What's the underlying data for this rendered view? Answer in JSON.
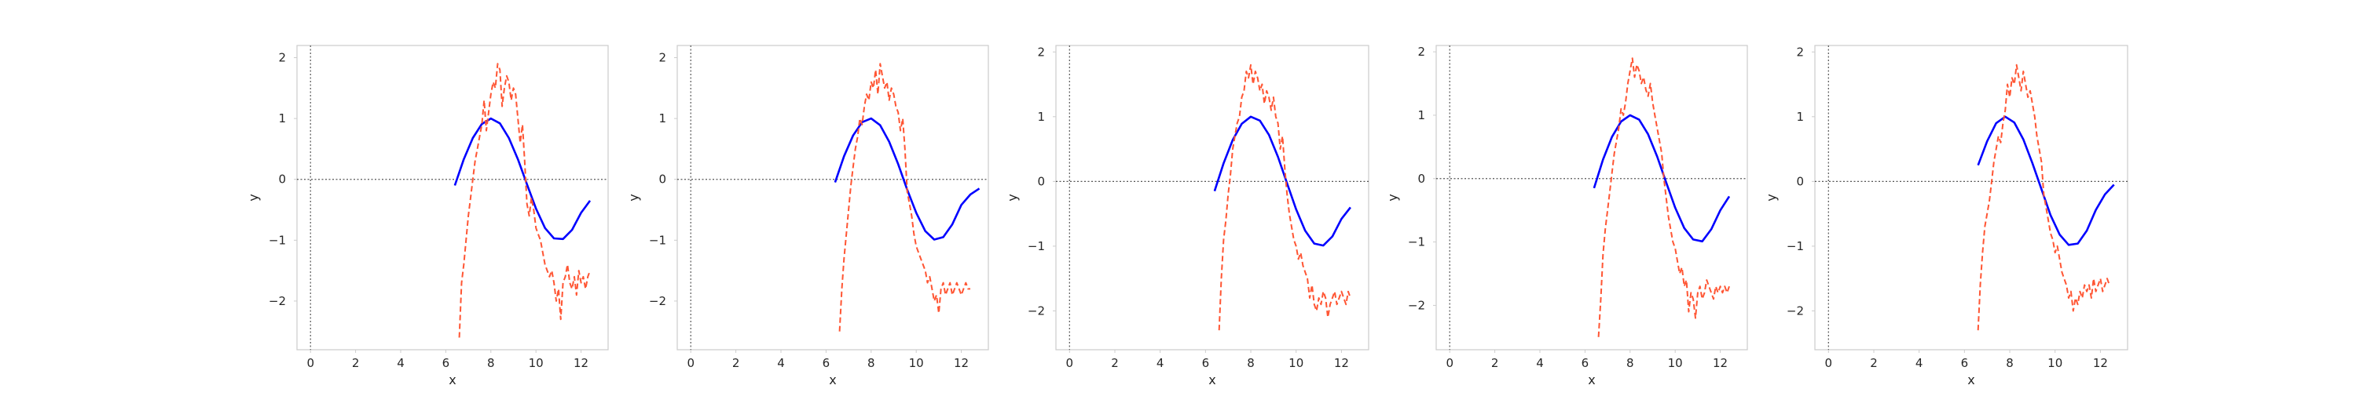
{
  "figure": {
    "panel_count": 5
  },
  "colors": {
    "sine": "#0000ff",
    "noisy": "#ff5533",
    "zero_lines": "#555555",
    "frame": "#cccccc"
  },
  "chart_data": [
    {
      "type": "line",
      "xlabel": "x",
      "ylabel": "y",
      "xlim": [
        -0.6,
        13.2
      ],
      "ylim": [
        -2.8,
        2.2
      ],
      "xticks": [
        0,
        2,
        4,
        6,
        8,
        10,
        12
      ],
      "yticks": [
        -2,
        -1,
        0,
        1,
        2
      ],
      "grid": false,
      "reference_lines": {
        "horizontal_y": 0,
        "vertical_x": 0
      },
      "series": [
        {
          "style": "solid",
          "color": "#0000ff",
          "x": [
            6.4,
            6.8,
            7.2,
            7.6,
            8.0,
            8.4,
            8.8,
            9.2,
            9.6,
            10.0,
            10.4,
            10.8,
            11.2,
            11.6,
            12.0,
            12.4
          ],
          "y": [
            -0.1,
            0.33,
            0.68,
            0.91,
            1.0,
            0.92,
            0.68,
            0.33,
            -0.08,
            -0.48,
            -0.8,
            -0.97,
            -0.98,
            -0.83,
            -0.55,
            -0.35
          ]
        },
        {
          "style": "dashed",
          "color": "#ff5533",
          "x": [
            6.6,
            6.7,
            6.8,
            6.9,
            7.0,
            7.1,
            7.2,
            7.3,
            7.4,
            7.5,
            7.6,
            7.7,
            7.8,
            7.9,
            8.0,
            8.1,
            8.2,
            8.3,
            8.4,
            8.5,
            8.6,
            8.7,
            8.8,
            8.9,
            9.0,
            9.1,
            9.2,
            9.3,
            9.4,
            9.5,
            9.6,
            9.7,
            9.8,
            9.9,
            10.0,
            10.1,
            10.2,
            10.3,
            10.4,
            10.5,
            10.6,
            10.7,
            10.8,
            10.9,
            11.0,
            11.1,
            11.2,
            11.3,
            11.4,
            11.5,
            11.6,
            11.7,
            11.8,
            11.9,
            12.0,
            12.1,
            12.2,
            12.3,
            12.4
          ],
          "y": [
            -2.6,
            -1.7,
            -1.4,
            -1.0,
            -0.6,
            -0.3,
            0.0,
            0.3,
            0.5,
            0.7,
            0.9,
            1.3,
            0.8,
            1.1,
            1.4,
            1.6,
            1.5,
            1.9,
            1.8,
            1.2,
            1.5,
            1.7,
            1.6,
            1.3,
            1.5,
            1.4,
            1.0,
            0.6,
            0.9,
            0.3,
            -0.4,
            -0.6,
            -0.3,
            -0.5,
            -0.8,
            -0.9,
            -1.0,
            -1.2,
            -1.4,
            -1.5,
            -1.6,
            -1.5,
            -1.7,
            -2.0,
            -1.8,
            -2.3,
            -1.7,
            -1.6,
            -1.4,
            -1.7,
            -1.8,
            -1.6,
            -1.9,
            -1.5,
            -1.7,
            -1.6,
            -1.8,
            -1.6,
            -1.5
          ]
        }
      ]
    },
    {
      "type": "line",
      "xlabel": "x",
      "ylabel": "y",
      "xlim": [
        -0.6,
        13.2
      ],
      "ylim": [
        -2.8,
        2.2
      ],
      "xticks": [
        0,
        2,
        4,
        6,
        8,
        10,
        12
      ],
      "yticks": [
        -2,
        -1,
        0,
        1,
        2
      ],
      "grid": false,
      "reference_lines": {
        "horizontal_y": 0,
        "vertical_x": 0
      },
      "series": [
        {
          "style": "solid",
          "color": "#0000ff",
          "x": [
            6.4,
            6.8,
            7.2,
            7.6,
            8.0,
            8.4,
            8.8,
            9.2,
            9.6,
            10.0,
            10.4,
            10.8,
            11.2,
            11.6,
            12.0,
            12.4,
            12.8
          ],
          "y": [
            -0.05,
            0.38,
            0.72,
            0.94,
            1.0,
            0.89,
            0.62,
            0.25,
            -0.17,
            -0.55,
            -0.85,
            -0.99,
            -0.95,
            -0.74,
            -0.42,
            -0.25,
            -0.15
          ]
        },
        {
          "style": "dashed",
          "color": "#ff5533",
          "x": [
            6.6,
            6.7,
            6.8,
            6.9,
            7.0,
            7.1,
            7.2,
            7.3,
            7.4,
            7.5,
            7.6,
            7.7,
            7.8,
            7.9,
            8.0,
            8.1,
            8.2,
            8.3,
            8.4,
            8.5,
            8.6,
            8.7,
            8.8,
            8.9,
            9.0,
            9.1,
            9.2,
            9.3,
            9.4,
            9.5,
            9.6,
            9.7,
            9.8,
            9.9,
            10.0,
            10.1,
            10.2,
            10.3,
            10.4,
            10.5,
            10.6,
            10.7,
            10.8,
            10.9,
            11.0,
            11.1,
            11.2,
            11.3,
            11.4,
            11.5,
            11.6,
            11.7,
            11.8,
            11.9,
            12.0,
            12.1,
            12.2,
            12.3,
            12.4
          ],
          "y": [
            -2.5,
            -1.8,
            -1.3,
            -0.9,
            -0.5,
            -0.1,
            0.2,
            0.5,
            0.7,
            1.0,
            0.9,
            1.2,
            1.4,
            1.3,
            1.6,
            1.5,
            1.8,
            1.4,
            1.9,
            1.7,
            1.5,
            1.6,
            1.3,
            1.5,
            1.4,
            1.2,
            1.1,
            0.8,
            1.0,
            0.5,
            -0.2,
            -0.4,
            -0.6,
            -0.9,
            -1.1,
            -1.2,
            -1.3,
            -1.4,
            -1.5,
            -1.7,
            -1.6,
            -1.8,
            -2.0,
            -1.9,
            -2.2,
            -1.8,
            -1.7,
            -1.9,
            -1.8,
            -1.7,
            -1.9,
            -1.8,
            -1.7,
            -1.8,
            -1.9,
            -1.8,
            -1.7,
            -1.8,
            -1.8
          ]
        }
      ]
    },
    {
      "type": "line",
      "xlabel": "x",
      "ylabel": "y",
      "xlim": [
        -0.6,
        13.2
      ],
      "ylim": [
        -2.6,
        2.1
      ],
      "xticks": [
        0,
        2,
        4,
        6,
        8,
        10,
        12
      ],
      "yticks": [
        -2,
        -1,
        0,
        1,
        2
      ],
      "grid": false,
      "reference_lines": {
        "horizontal_y": 0,
        "vertical_x": 0
      },
      "series": [
        {
          "style": "solid",
          "color": "#0000ff",
          "x": [
            6.4,
            6.8,
            7.2,
            7.6,
            8.0,
            8.4,
            8.8,
            9.2,
            9.6,
            10.0,
            10.4,
            10.8,
            11.2,
            11.6,
            12.0,
            12.4
          ],
          "y": [
            -0.15,
            0.28,
            0.64,
            0.89,
            1.0,
            0.94,
            0.72,
            0.38,
            -0.03,
            -0.43,
            -0.76,
            -0.96,
            -0.99,
            -0.85,
            -0.58,
            -0.4
          ]
        },
        {
          "style": "dashed",
          "color": "#ff5533",
          "x": [
            6.6,
            6.7,
            6.8,
            6.9,
            7.0,
            7.1,
            7.2,
            7.3,
            7.4,
            7.5,
            7.6,
            7.7,
            7.8,
            7.9,
            8.0,
            8.1,
            8.2,
            8.3,
            8.4,
            8.5,
            8.6,
            8.7,
            8.8,
            8.9,
            9.0,
            9.1,
            9.2,
            9.3,
            9.4,
            9.5,
            9.6,
            9.7,
            9.8,
            9.9,
            10.0,
            10.1,
            10.2,
            10.3,
            10.4,
            10.5,
            10.6,
            10.7,
            10.8,
            10.9,
            11.0,
            11.1,
            11.2,
            11.3,
            11.4,
            11.5,
            11.6,
            11.7,
            11.8,
            11.9,
            12.0,
            12.1,
            12.2,
            12.3,
            12.4
          ],
          "y": [
            -2.3,
            -1.5,
            -0.9,
            -0.6,
            -0.2,
            0.1,
            0.5,
            0.7,
            0.9,
            1.0,
            1.3,
            1.4,
            1.7,
            1.6,
            1.8,
            1.5,
            1.7,
            1.6,
            1.4,
            1.5,
            1.2,
            1.4,
            1.3,
            1.1,
            1.3,
            1.0,
            0.9,
            0.5,
            0.7,
            0.2,
            -0.2,
            -0.5,
            -0.7,
            -0.9,
            -1.0,
            -1.2,
            -1.1,
            -1.3,
            -1.4,
            -1.5,
            -1.8,
            -1.6,
            -1.9,
            -2.0,
            -1.8,
            -1.9,
            -1.7,
            -1.8,
            -2.1,
            -1.9,
            -1.8,
            -1.7,
            -1.9,
            -1.8,
            -1.7,
            -1.8,
            -1.9,
            -1.7,
            -1.8
          ]
        }
      ]
    },
    {
      "type": "line",
      "xlabel": "x",
      "ylabel": "y",
      "xlim": [
        -0.6,
        13.2
      ],
      "ylim": [
        -2.7,
        2.1
      ],
      "xticks": [
        0,
        2,
        4,
        6,
        8,
        10,
        12
      ],
      "yticks": [
        -2,
        -1,
        0,
        1,
        2
      ],
      "grid": false,
      "reference_lines": {
        "horizontal_y": 0,
        "vertical_x": 0
      },
      "series": [
        {
          "style": "solid",
          "color": "#0000ff",
          "x": [
            6.4,
            6.8,
            7.2,
            7.6,
            8.0,
            8.4,
            8.8,
            9.2,
            9.6,
            10.0,
            10.4,
            10.8,
            11.2,
            11.6,
            12.0,
            12.4
          ],
          "y": [
            -0.15,
            0.3,
            0.66,
            0.9,
            1.0,
            0.93,
            0.7,
            0.35,
            -0.06,
            -0.46,
            -0.78,
            -0.96,
            -0.99,
            -0.8,
            -0.5,
            -0.28
          ]
        },
        {
          "style": "dashed",
          "color": "#ff5533",
          "x": [
            6.6,
            6.7,
            6.8,
            6.9,
            7.0,
            7.1,
            7.2,
            7.3,
            7.4,
            7.5,
            7.6,
            7.7,
            7.8,
            7.9,
            8.0,
            8.1,
            8.2,
            8.3,
            8.4,
            8.5,
            8.6,
            8.7,
            8.8,
            8.9,
            9.0,
            9.1,
            9.2,
            9.3,
            9.4,
            9.5,
            9.6,
            9.7,
            9.8,
            9.9,
            10.0,
            10.1,
            10.2,
            10.3,
            10.4,
            10.5,
            10.6,
            10.7,
            10.8,
            10.9,
            11.0,
            11.1,
            11.2,
            11.3,
            11.4,
            11.5,
            11.6,
            11.7,
            11.8,
            11.9,
            12.0,
            12.1,
            12.2,
            12.3,
            12.4
          ],
          "y": [
            -2.5,
            -1.9,
            -1.2,
            -0.8,
            -0.5,
            -0.2,
            0.1,
            0.4,
            0.6,
            0.8,
            1.1,
            1.0,
            1.2,
            1.5,
            1.7,
            1.9,
            1.6,
            1.8,
            1.7,
            1.5,
            1.6,
            1.4,
            1.3,
            1.5,
            1.2,
            1.0,
            0.8,
            0.6,
            0.4,
            0.0,
            -0.3,
            -0.6,
            -0.8,
            -1.0,
            -1.1,
            -1.3,
            -1.5,
            -1.4,
            -1.7,
            -1.6,
            -2.1,
            -1.8,
            -1.9,
            -2.2,
            -1.8,
            -1.7,
            -1.9,
            -1.8,
            -1.6,
            -1.7,
            -1.8,
            -1.9,
            -1.7,
            -1.8,
            -1.7,
            -1.8,
            -1.7,
            -1.8,
            -1.7
          ]
        }
      ]
    },
    {
      "type": "line",
      "xlabel": "x",
      "ylabel": "y",
      "xlim": [
        -0.6,
        13.2
      ],
      "ylim": [
        -2.6,
        2.1
      ],
      "xticks": [
        0,
        2,
        4,
        6,
        8,
        10,
        12
      ],
      "yticks": [
        -2,
        -1,
        0,
        1,
        2
      ],
      "grid": false,
      "reference_lines": {
        "horizontal_y": 0,
        "vertical_x": 0
      },
      "series": [
        {
          "style": "solid",
          "color": "#0000ff",
          "x": [
            6.6,
            7.0,
            7.4,
            7.8,
            8.2,
            8.6,
            9.0,
            9.4,
            9.8,
            10.2,
            10.6,
            11.0,
            11.4,
            11.8,
            12.2,
            12.6
          ],
          "y": [
            0.25,
            0.62,
            0.9,
            1.0,
            0.91,
            0.65,
            0.28,
            -0.12,
            -0.52,
            -0.82,
            -0.98,
            -0.96,
            -0.76,
            -0.44,
            -0.2,
            -0.05
          ]
        },
        {
          "style": "dashed",
          "color": "#ff5533",
          "x": [
            6.6,
            6.7,
            6.8,
            6.9,
            7.0,
            7.1,
            7.2,
            7.3,
            7.4,
            7.5,
            7.6,
            7.7,
            7.8,
            7.9,
            8.0,
            8.1,
            8.2,
            8.3,
            8.4,
            8.5,
            8.6,
            8.7,
            8.8,
            8.9,
            9.0,
            9.1,
            9.2,
            9.3,
            9.4,
            9.5,
            9.6,
            9.7,
            9.8,
            9.9,
            10.0,
            10.1,
            10.2,
            10.3,
            10.4,
            10.5,
            10.6,
            10.7,
            10.8,
            10.9,
            11.0,
            11.1,
            11.2,
            11.3,
            11.4,
            11.5,
            11.6,
            11.7,
            11.8,
            11.9,
            12.0,
            12.1,
            12.2,
            12.3,
            12.4
          ],
          "y": [
            -2.3,
            -1.6,
            -1.1,
            -0.7,
            -0.5,
            -0.3,
            0.0,
            0.3,
            0.5,
            0.7,
            0.6,
            0.9,
            1.1,
            1.5,
            1.3,
            1.6,
            1.5,
            1.8,
            1.6,
            1.4,
            1.7,
            1.5,
            1.3,
            1.4,
            1.2,
            1.0,
            0.7,
            0.5,
            0.3,
            -0.2,
            -0.4,
            -0.6,
            -0.8,
            -0.9,
            -1.1,
            -1.0,
            -1.2,
            -1.4,
            -1.5,
            -1.6,
            -1.8,
            -1.7,
            -2.0,
            -1.8,
            -1.9,
            -1.7,
            -1.8,
            -1.6,
            -1.7,
            -1.6,
            -1.8,
            -1.5,
            -1.7,
            -1.6,
            -1.5,
            -1.7,
            -1.6,
            -1.5,
            -1.6
          ]
        }
      ]
    }
  ]
}
